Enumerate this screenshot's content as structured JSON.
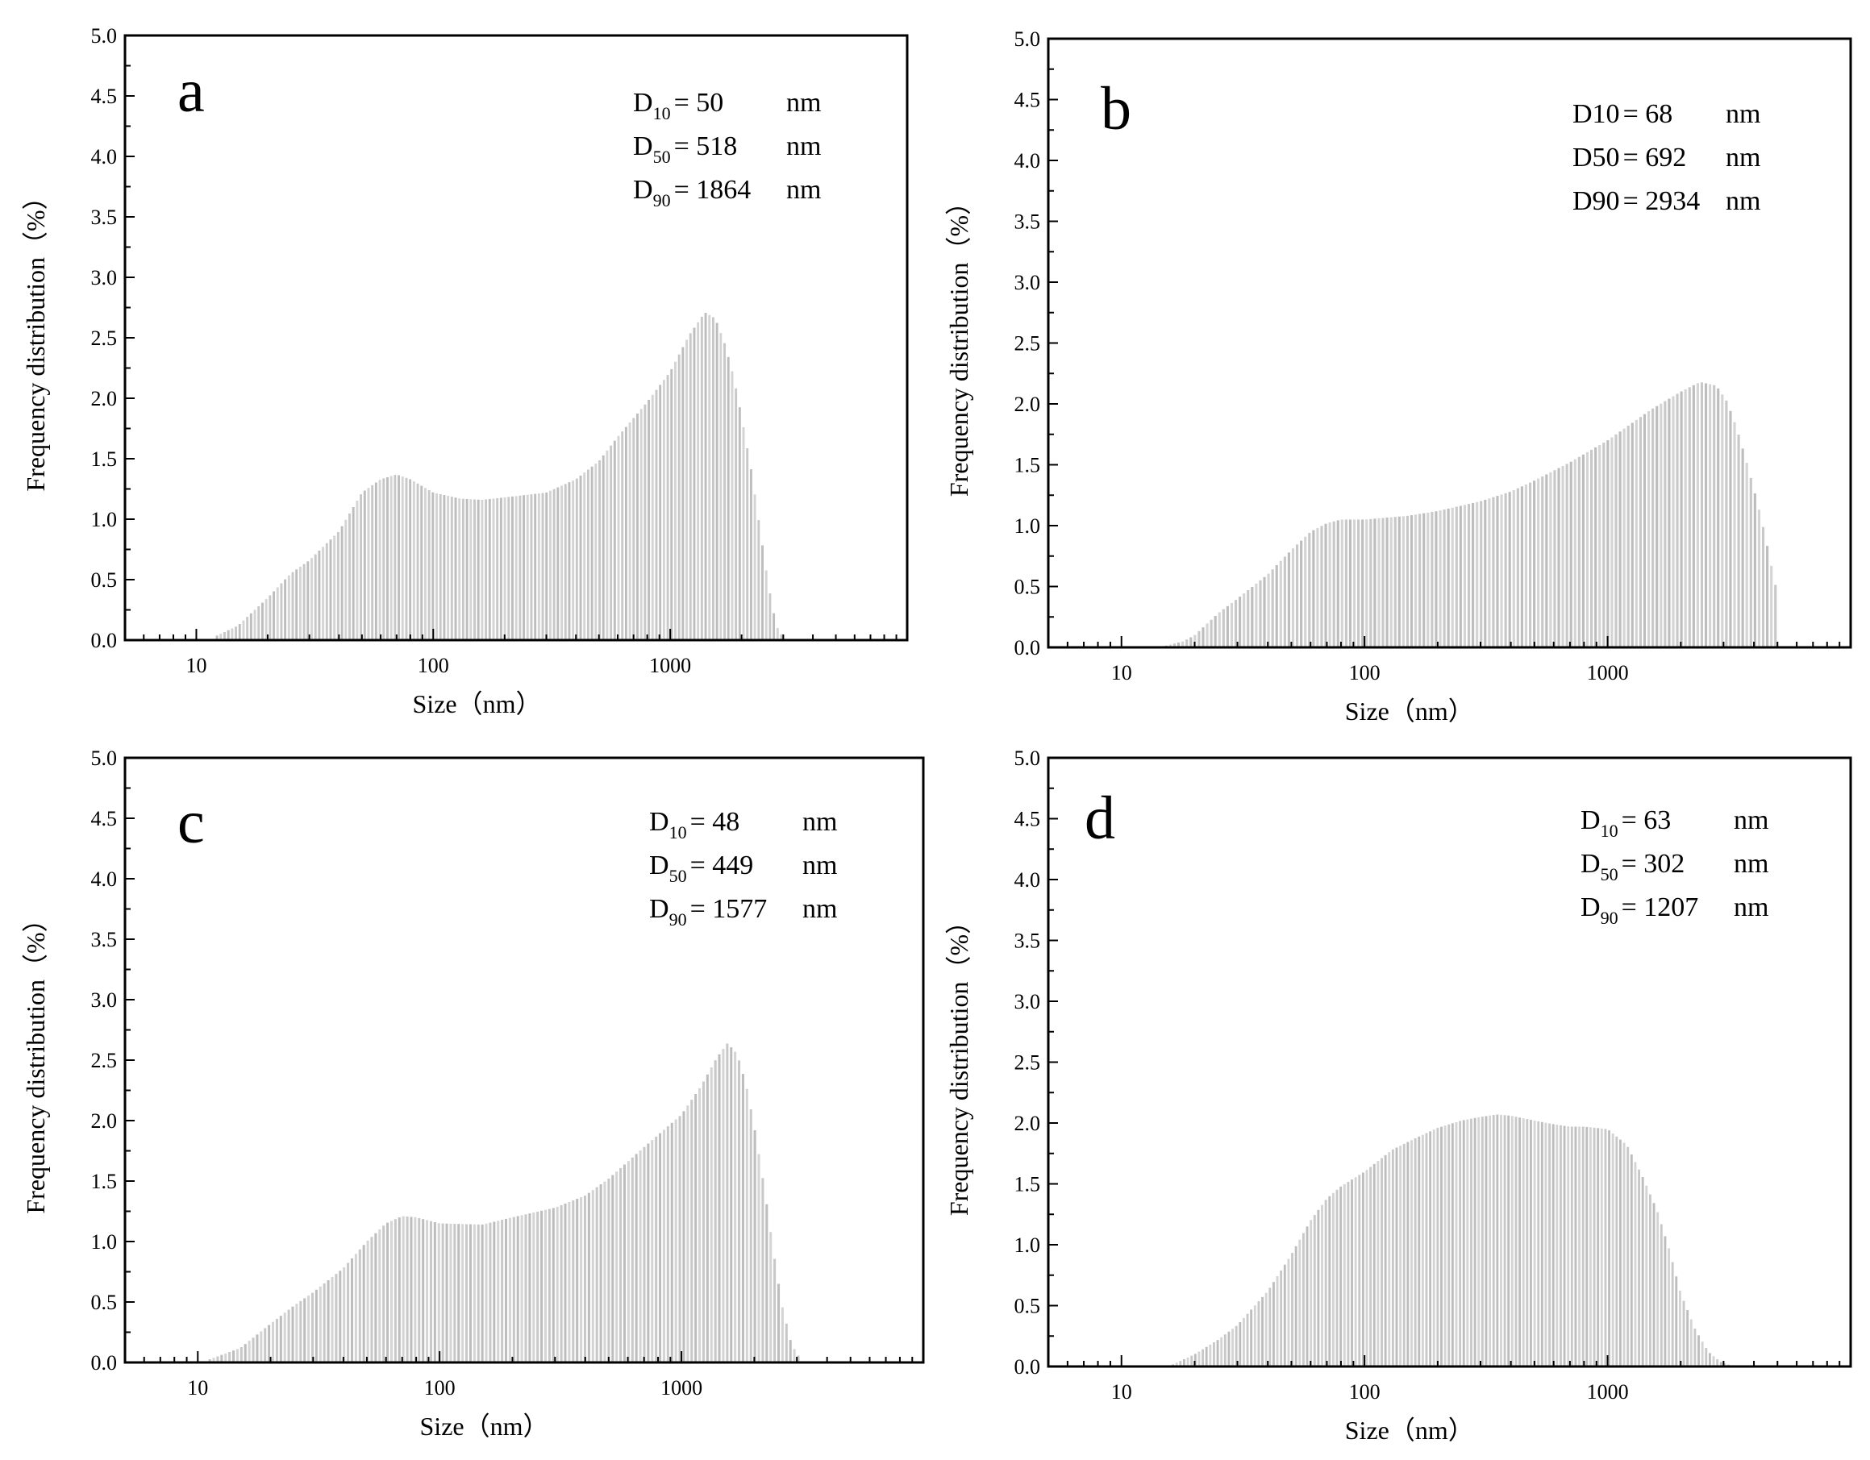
{
  "chart_data": [
    {
      "type": "bar",
      "panel": "a",
      "xlabel": "Size（nm）",
      "ylabel": "Frequency distribution（%）",
      "xscale": "log",
      "xlim": [
        5,
        10000
      ],
      "ylim": [
        0,
        5.0
      ],
      "x_ticks": [
        "10",
        "100",
        "1000"
      ],
      "y_ticks": [
        "0.0",
        "0.5",
        "1.0",
        "1.5",
        "2.0",
        "2.5",
        "3.0",
        "3.5",
        "4.0",
        "4.5",
        "5.0"
      ],
      "annotations": [
        {
          "base": "D",
          "sub": "10",
          "text": "= 50",
          "unit": "nm"
        },
        {
          "base": "D",
          "sub": "50",
          "text": "= 518",
          "unit": "nm"
        },
        {
          "base": "D",
          "sub": "90",
          "text": "= 1864",
          "unit": "nm"
        }
      ],
      "distribution": {
        "range": [
          12,
          3000
        ],
        "points": [
          [
            12,
            0.03
          ],
          [
            15,
            0.12
          ],
          [
            20,
            0.35
          ],
          [
            25,
            0.55
          ],
          [
            30,
            0.66
          ],
          [
            40,
            0.9
          ],
          [
            50,
            1.22
          ],
          [
            60,
            1.33
          ],
          [
            70,
            1.37
          ],
          [
            80,
            1.33
          ],
          [
            100,
            1.22
          ],
          [
            130,
            1.17
          ],
          [
            160,
            1.16
          ],
          [
            200,
            1.18
          ],
          [
            300,
            1.22
          ],
          [
            400,
            1.33
          ],
          [
            500,
            1.48
          ],
          [
            600,
            1.68
          ],
          [
            800,
            1.97
          ],
          [
            1000,
            2.22
          ],
          [
            1200,
            2.52
          ],
          [
            1400,
            2.71
          ],
          [
            1550,
            2.66
          ],
          [
            1700,
            2.45
          ],
          [
            1850,
            2.18
          ],
          [
            2000,
            1.85
          ],
          [
            2200,
            1.4
          ],
          [
            2400,
            0.9
          ],
          [
            2600,
            0.45
          ],
          [
            2800,
            0.12
          ],
          [
            3000,
            0.02
          ]
        ]
      }
    },
    {
      "type": "bar",
      "panel": "b",
      "xlabel": "Size（nm）",
      "ylabel": "Frequency distribution（%）",
      "xscale": "log",
      "xlim": [
        5,
        10000
      ],
      "ylim": [
        0,
        5.0
      ],
      "x_ticks": [
        "10",
        "100",
        "1000"
      ],
      "y_ticks": [
        "0.0",
        "0.5",
        "1.0",
        "1.5",
        "2.0",
        "2.5",
        "3.0",
        "3.5",
        "4.0",
        "4.5",
        "5.0"
      ],
      "annotations": [
        {
          "base": "D10",
          "sub": "",
          "text": "= 68",
          "unit": "nm"
        },
        {
          "base": "D50",
          "sub": "",
          "text": "= 692",
          "unit": "nm"
        },
        {
          "base": "D90",
          "sub": "",
          "text": "= 2934",
          "unit": "nm"
        }
      ],
      "distribution": {
        "range": [
          15,
          5000
        ],
        "points": [
          [
            15,
            0.01
          ],
          [
            18,
            0.05
          ],
          [
            20,
            0.1
          ],
          [
            25,
            0.28
          ],
          [
            30,
            0.4
          ],
          [
            40,
            0.6
          ],
          [
            50,
            0.8
          ],
          [
            60,
            0.95
          ],
          [
            70,
            1.02
          ],
          [
            80,
            1.05
          ],
          [
            100,
            1.05
          ],
          [
            150,
            1.08
          ],
          [
            200,
            1.12
          ],
          [
            300,
            1.2
          ],
          [
            400,
            1.28
          ],
          [
            500,
            1.37
          ],
          [
            700,
            1.52
          ],
          [
            1000,
            1.7
          ],
          [
            1500,
            1.95
          ],
          [
            2000,
            2.1
          ],
          [
            2400,
            2.18
          ],
          [
            2800,
            2.15
          ],
          [
            3100,
            2.02
          ],
          [
            3400,
            1.8
          ],
          [
            3700,
            1.55
          ],
          [
            4000,
            1.3
          ],
          [
            4300,
            1.05
          ],
          [
            4600,
            0.78
          ],
          [
            4850,
            0.55
          ],
          [
            5000,
            0.45
          ]
        ]
      }
    },
    {
      "type": "bar",
      "panel": "c",
      "xlabel": "Size（nm）",
      "ylabel": "Frequency distribution（%）",
      "xscale": "log",
      "xlim": [
        5,
        10000
      ],
      "ylim": [
        0,
        5.0
      ],
      "x_ticks": [
        "10",
        "100",
        "1000"
      ],
      "y_ticks": [
        "0.0",
        "0.5",
        "1.0",
        "1.5",
        "2.0",
        "2.5",
        "3.0",
        "3.5",
        "4.0",
        "4.5",
        "5.0"
      ],
      "annotations": [
        {
          "base": "D",
          "sub": "10",
          "text": "= 48",
          "unit": "nm"
        },
        {
          "base": "D",
          "sub": "50",
          "text": "= 449",
          "unit": "nm"
        },
        {
          "base": "D",
          "sub": "90",
          "text": "= 1577",
          "unit": "nm"
        }
      ],
      "distribution": {
        "range": [
          11,
          3100
        ],
        "points": [
          [
            11,
            0.02
          ],
          [
            15,
            0.12
          ],
          [
            20,
            0.32
          ],
          [
            25,
            0.47
          ],
          [
            30,
            0.58
          ],
          [
            40,
            0.78
          ],
          [
            50,
            1.0
          ],
          [
            60,
            1.15
          ],
          [
            70,
            1.21
          ],
          [
            80,
            1.2
          ],
          [
            100,
            1.15
          ],
          [
            150,
            1.14
          ],
          [
            200,
            1.2
          ],
          [
            300,
            1.28
          ],
          [
            400,
            1.38
          ],
          [
            500,
            1.52
          ],
          [
            700,
            1.78
          ],
          [
            1000,
            2.05
          ],
          [
            1200,
            2.28
          ],
          [
            1400,
            2.52
          ],
          [
            1550,
            2.64
          ],
          [
            1700,
            2.55
          ],
          [
            1850,
            2.3
          ],
          [
            2000,
            1.95
          ],
          [
            2200,
            1.45
          ],
          [
            2400,
            0.92
          ],
          [
            2600,
            0.48
          ],
          [
            2850,
            0.15
          ],
          [
            3100,
            0.03
          ]
        ]
      }
    },
    {
      "type": "bar",
      "panel": "d",
      "xlabel": "Size（nm）",
      "ylabel": "Frequency distribution（%）",
      "xscale": "log",
      "xlim": [
        5,
        10000
      ],
      "ylim": [
        0,
        5.0
      ],
      "x_ticks": [
        "10",
        "100",
        "1000"
      ],
      "y_ticks": [
        "0.0",
        "0.5",
        "1.0",
        "1.5",
        "2.0",
        "2.5",
        "3.0",
        "3.5",
        "4.0",
        "4.5",
        "5.0"
      ],
      "annotations": [
        {
          "base": "D",
          "sub": "10",
          "text": "= 63",
          "unit": "nm"
        },
        {
          "base": "D",
          "sub": "50",
          "text": "= 302",
          "unit": "nm"
        },
        {
          "base": "D",
          "sub": "90",
          "text": "= 1207",
          "unit": "nm"
        }
      ],
      "distribution": {
        "range": [
          16,
          3200
        ],
        "points": [
          [
            16,
            0.01
          ],
          [
            20,
            0.1
          ],
          [
            25,
            0.22
          ],
          [
            30,
            0.34
          ],
          [
            40,
            0.62
          ],
          [
            50,
            0.92
          ],
          [
            60,
            1.2
          ],
          [
            70,
            1.38
          ],
          [
            80,
            1.48
          ],
          [
            100,
            1.6
          ],
          [
            130,
            1.78
          ],
          [
            160,
            1.87
          ],
          [
            200,
            1.96
          ],
          [
            250,
            2.02
          ],
          [
            300,
            2.05
          ],
          [
            350,
            2.07
          ],
          [
            400,
            2.06
          ],
          [
            500,
            2.02
          ],
          [
            600,
            1.99
          ],
          [
            700,
            1.97
          ],
          [
            800,
            1.97
          ],
          [
            1000,
            1.95
          ],
          [
            1200,
            1.82
          ],
          [
            1400,
            1.55
          ],
          [
            1600,
            1.28
          ],
          [
            1800,
            0.95
          ],
          [
            2000,
            0.6
          ],
          [
            2300,
            0.3
          ],
          [
            2600,
            0.12
          ],
          [
            2900,
            0.04
          ],
          [
            3200,
            0.01
          ]
        ]
      }
    }
  ]
}
